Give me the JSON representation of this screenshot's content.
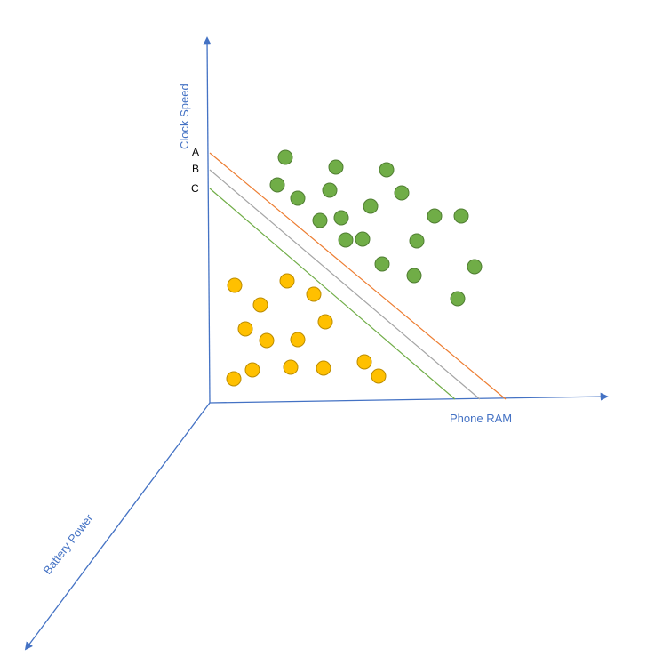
{
  "axes": {
    "y": "Clock Speed",
    "x": "Phone RAM",
    "z": "Battery Power"
  },
  "lines": [
    {
      "label": "A",
      "color": "#ED7D31"
    },
    {
      "label": "B",
      "color": "#A5A5A5"
    },
    {
      "label": "C",
      "color": "#70AD47"
    }
  ],
  "colors": {
    "axis": "#4472C4",
    "axis_text": "#4472C4",
    "line_text": "#000000",
    "green_fill": "#70AD47",
    "green_stroke": "#507E32",
    "yellow_fill": "#FFC000",
    "yellow_stroke": "#BC8C00"
  }
}
